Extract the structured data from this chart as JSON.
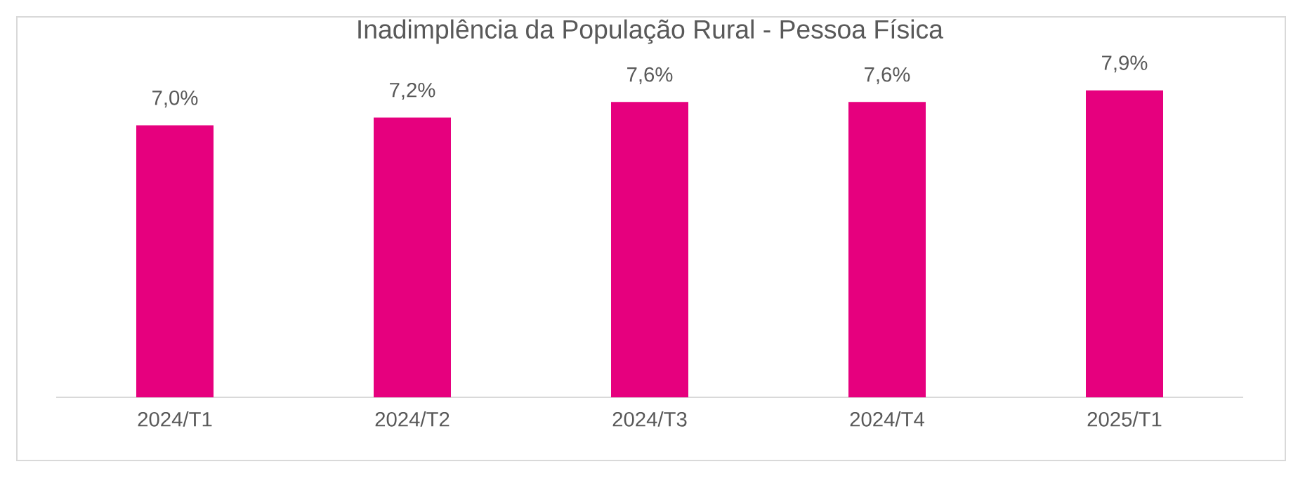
{
  "chart_data": {
    "type": "bar",
    "title": "Inadimplência da População Rural - Pessoa Física",
    "categories": [
      "2024/T1",
      "2024/T2",
      "2024/T3",
      "2024/T4",
      "2025/T1"
    ],
    "values": [
      7.0,
      7.2,
      7.6,
      7.6,
      7.9
    ],
    "value_labels": [
      "7,0%",
      "7,2%",
      "7,6%",
      "7,6%",
      "7,9%"
    ],
    "color": "#e6007e",
    "tick_labels": "x"
  }
}
